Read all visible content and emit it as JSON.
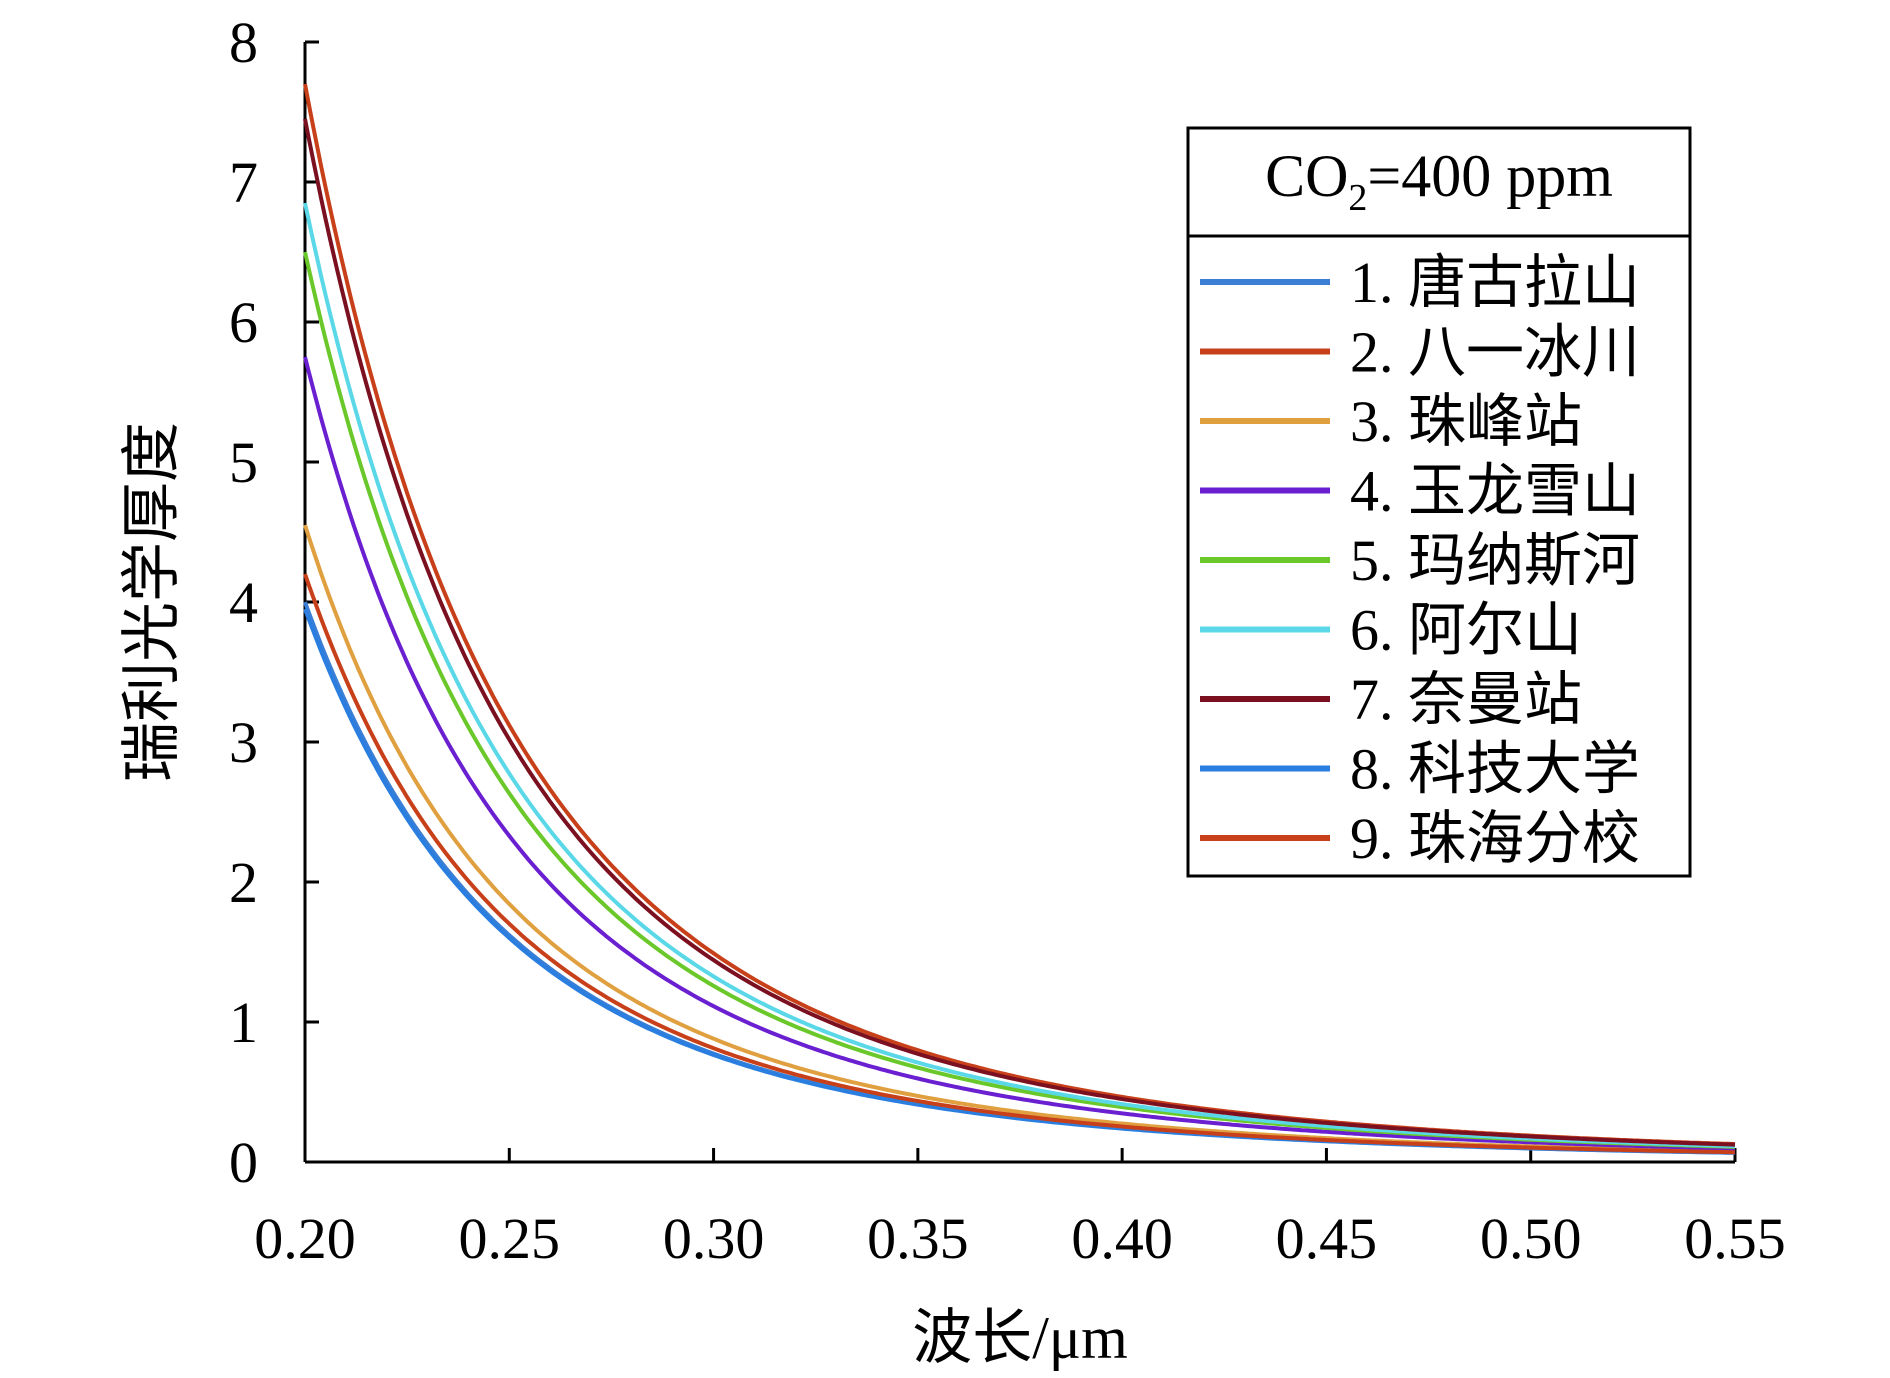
{
  "chart_data": {
    "type": "line",
    "title": "",
    "xlabel": "波长/μm",
    "ylabel": "瑞利光学厚度",
    "xlim": [
      0.2,
      0.55
    ],
    "ylim": [
      0,
      8
    ],
    "x_ticks": [
      0.2,
      0.25,
      0.3,
      0.35,
      0.4,
      0.45,
      0.5,
      0.55
    ],
    "x_tick_labels": [
      "0.20",
      "0.25",
      "0.30",
      "0.35",
      "0.40",
      "0.45",
      "0.50",
      "0.55"
    ],
    "y_ticks": [
      0,
      1,
      2,
      3,
      4,
      5,
      6,
      7,
      8
    ],
    "y_tick_labels": [
      "0",
      "1",
      "2",
      "3",
      "4",
      "5",
      "6",
      "7",
      "8"
    ],
    "legend": {
      "title_main": "CO",
      "title_sub": "2",
      "title_rest": "=400 ppm",
      "position": "top-right"
    },
    "model": "tau(lambda) = tau(0.20 um) * (lambda / 0.20)^(-4.05)",
    "series": [
      {
        "name": "1. 唐古拉山",
        "color": "#3a7fd5",
        "values_at_0.20": 4.0
      },
      {
        "name": "2. 八一冰川",
        "color": "#c8401a",
        "values_at_0.20": 7.7
      },
      {
        "name": "3. 珠峰站",
        "color": "#e0a040",
        "values_at_0.20": 4.55
      },
      {
        "name": "4. 玉龙雪山",
        "color": "#6a1fd0",
        "values_at_0.20": 5.75
      },
      {
        "name": "5. 玛纳斯河",
        "color": "#6ac82a",
        "values_at_0.20": 6.5
      },
      {
        "name": "6. 阿尔山",
        "color": "#5ad8e8",
        "values_at_0.20": 6.85
      },
      {
        "name": "7. 奈曼站",
        "color": "#7a1020",
        "values_at_0.20": 7.45
      },
      {
        "name": "8. 科技大学",
        "color": "#2a7ee0",
        "values_at_0.20": 3.95
      },
      {
        "name": "9. 珠海分校",
        "color": "#c8401a",
        "values_at_0.20": 4.2
      }
    ]
  }
}
